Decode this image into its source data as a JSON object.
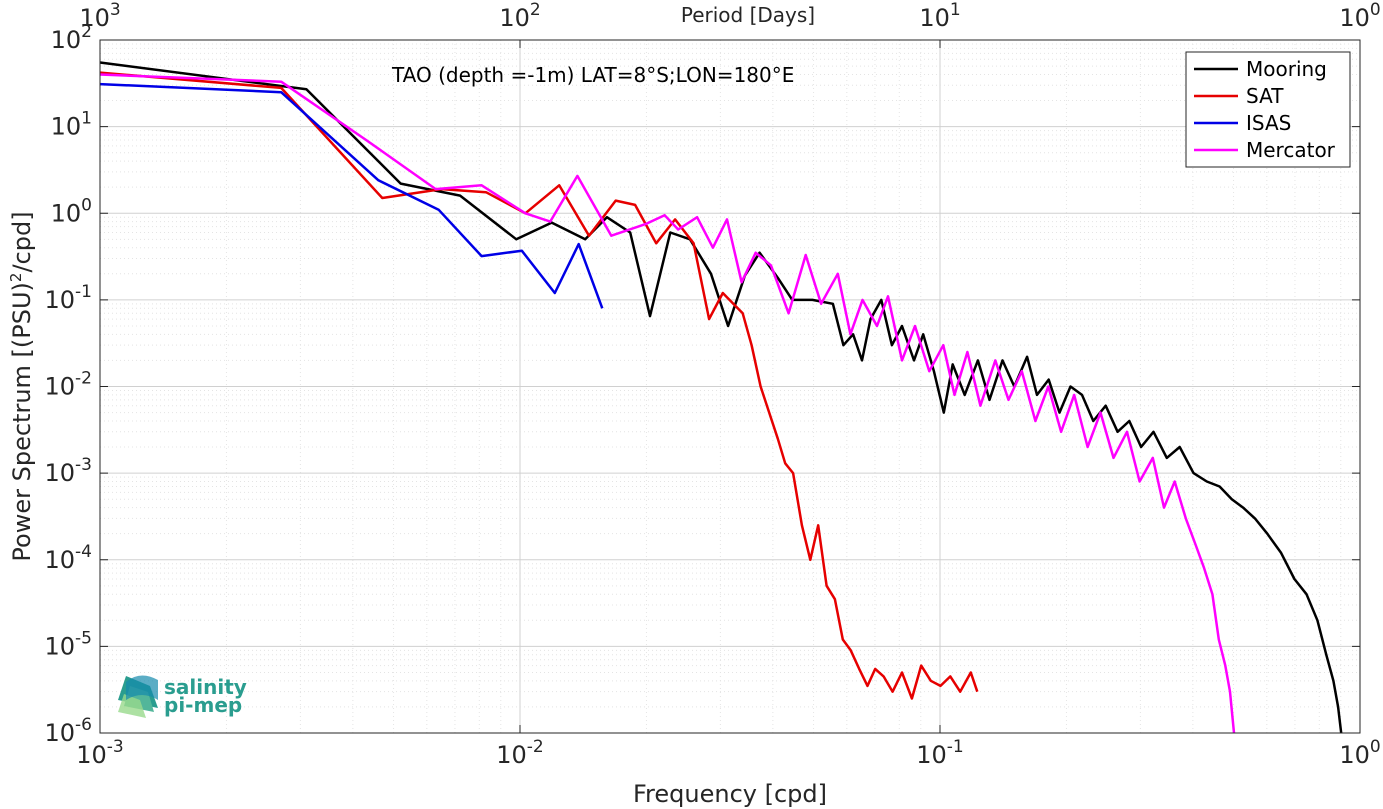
{
  "chart_data": {
    "type": "line",
    "title": "",
    "annotation": "TAO (depth =-1m) LAT=8°S;LON=180°E",
    "xlabel": "Frequency [cpd]",
    "ylabel": "Power Spectrum [(PSU)",
    "ylabel_sup": "2",
    "ylabel_tail": "/cpd]",
    "top_xlabel": "Period [Days]",
    "x_scale": "log",
    "y_scale": "log",
    "xlim": [
      0.001,
      1
    ],
    "ylim": [
      1e-06,
      100
    ],
    "x_ticks": [
      {
        "value": 0.001,
        "base": "10",
        "exp": "-3"
      },
      {
        "value": 0.01,
        "base": "10",
        "exp": "-2"
      },
      {
        "value": 0.1,
        "base": "10",
        "exp": "-1"
      },
      {
        "value": 1,
        "base": "10",
        "exp": "0"
      }
    ],
    "top_ticks": [
      {
        "freq": 0.001,
        "base": "10",
        "exp": "3"
      },
      {
        "freq": 0.01,
        "base": "10",
        "exp": "2"
      },
      {
        "freq": 0.1,
        "base": "10",
        "exp": "1"
      },
      {
        "freq": 1,
        "base": "10",
        "exp": "0"
      }
    ],
    "y_ticks": [
      {
        "value": 100,
        "base": "10",
        "exp": "2"
      },
      {
        "value": 10,
        "base": "10",
        "exp": "1"
      },
      {
        "value": 1,
        "base": "10",
        "exp": "0"
      },
      {
        "value": 0.1,
        "base": "10",
        "exp": "-1"
      },
      {
        "value": 0.01,
        "base": "10",
        "exp": "-2"
      },
      {
        "value": 0.001,
        "base": "10",
        "exp": "-3"
      },
      {
        "value": 0.0001,
        "base": "10",
        "exp": "-4"
      },
      {
        "value": 1e-05,
        "base": "10",
        "exp": "-5"
      },
      {
        "value": 1e-06,
        "base": "10",
        "exp": "-6"
      }
    ],
    "grid": true,
    "legend_position": "top-right",
    "series": [
      {
        "name": "Mooring",
        "color": "#000000",
        "points": [
          [
            0.001,
            55
          ],
          [
            0.0031,
            27
          ],
          [
            0.0052,
            2.2
          ],
          [
            0.0072,
            1.6
          ],
          [
            0.0098,
            0.5
          ],
          [
            0.0119,
            0.78
          ],
          [
            0.0143,
            0.5
          ],
          [
            0.0161,
            0.9
          ],
          [
            0.0183,
            0.6
          ],
          [
            0.0204,
            0.065
          ],
          [
            0.0228,
            0.6
          ],
          [
            0.0254,
            0.5
          ],
          [
            0.0285,
            0.2
          ],
          [
            0.0313,
            0.05
          ],
          [
            0.0343,
            0.19
          ],
          [
            0.0372,
            0.35
          ],
          [
            0.0411,
            0.18
          ],
          [
            0.0445,
            0.1
          ],
          [
            0.0497,
            0.1
          ],
          [
            0.0556,
            0.09
          ],
          [
            0.0589,
            0.03
          ],
          [
            0.0621,
            0.04
          ],
          [
            0.0652,
            0.02
          ],
          [
            0.0683,
            0.06
          ],
          [
            0.0725,
            0.1
          ],
          [
            0.0768,
            0.03
          ],
          [
            0.0812,
            0.05
          ],
          [
            0.0867,
            0.02
          ],
          [
            0.0912,
            0.04
          ],
          [
            0.0967,
            0.015
          ],
          [
            0.1021,
            0.005
          ],
          [
            0.1072,
            0.018
          ],
          [
            0.1145,
            0.008
          ],
          [
            0.1231,
            0.02
          ],
          [
            0.1312,
            0.007
          ],
          [
            0.1409,
            0.02
          ],
          [
            0.1503,
            0.01
          ],
          [
            0.1612,
            0.022
          ],
          [
            0.1702,
            0.008
          ],
          [
            0.1815,
            0.012
          ],
          [
            0.1925,
            0.005
          ],
          [
            0.2045,
            0.01
          ],
          [
            0.2178,
            0.008
          ],
          [
            0.2317,
            0.004
          ],
          [
            0.2481,
            0.006
          ],
          [
            0.2647,
            0.003
          ],
          [
            0.2823,
            0.004
          ],
          [
            0.3012,
            0.002
          ],
          [
            0.3224,
            0.003
          ],
          [
            0.3467,
            0.0015
          ],
          [
            0.3721,
            0.002
          ],
          [
            0.4015,
            0.001
          ],
          [
            0.4318,
            0.0008
          ],
          [
            0.4631,
            0.0007
          ],
          [
            0.4952,
            0.0005
          ],
          [
            0.5267,
            0.0004
          ],
          [
            0.5621,
            0.0003
          ],
          [
            0.6017,
            0.0002
          ],
          [
            0.6489,
            0.00012
          ],
          [
            0.6978,
            6e-05
          ],
          [
            0.7456,
            4e-05
          ],
          [
            0.7918,
            2e-05
          ],
          [
            0.8312,
            8e-06
          ],
          [
            0.8641,
            4e-06
          ],
          [
            0.8867,
            2e-06
          ],
          [
            0.9023,
            1e-06
          ]
        ]
      },
      {
        "name": "SAT",
        "color": "#e60000",
        "points": [
          [
            0.001,
            42
          ],
          [
            0.0027,
            28
          ],
          [
            0.0047,
            1.5
          ],
          [
            0.0065,
            1.9
          ],
          [
            0.0083,
            1.75
          ],
          [
            0.0103,
            1.0
          ],
          [
            0.0124,
            2.1
          ],
          [
            0.0146,
            0.55
          ],
          [
            0.0169,
            1.4
          ],
          [
            0.0188,
            1.25
          ],
          [
            0.0211,
            0.45
          ],
          [
            0.0234,
            0.85
          ],
          [
            0.0259,
            0.45
          ],
          [
            0.0282,
            0.06
          ],
          [
            0.0304,
            0.12
          ],
          [
            0.0322,
            0.09
          ],
          [
            0.0339,
            0.07
          ],
          [
            0.0356,
            0.03
          ],
          [
            0.0374,
            0.01
          ],
          [
            0.0392,
            0.005
          ],
          [
            0.0411,
            0.0025
          ],
          [
            0.0428,
            0.0013
          ],
          [
            0.0447,
            0.001
          ],
          [
            0.0469,
            0.00025
          ],
          [
            0.0491,
            0.0001
          ],
          [
            0.0513,
            0.00025
          ],
          [
            0.0537,
            5e-05
          ],
          [
            0.0562,
            3.5e-05
          ],
          [
            0.0587,
            1.2e-05
          ],
          [
            0.0613,
            9e-06
          ],
          [
            0.0642,
            5.5e-06
          ],
          [
            0.0672,
            3.5e-06
          ],
          [
            0.0701,
            5.5e-06
          ],
          [
            0.0734,
            4.5e-06
          ],
          [
            0.0771,
            3e-06
          ],
          [
            0.0812,
            5e-06
          ],
          [
            0.0857,
            2.5e-06
          ],
          [
            0.0902,
            6e-06
          ],
          [
            0.0951,
            4e-06
          ],
          [
            0.1003,
            3.5e-06
          ],
          [
            0.1058,
            4.5e-06
          ],
          [
            0.1117,
            3e-06
          ],
          [
            0.1184,
            5e-06
          ],
          [
            0.1227,
            3e-06
          ]
        ]
      },
      {
        "name": "ISAS",
        "color": "#0000e6",
        "points": [
          [
            0.001,
            31
          ],
          [
            0.0027,
            25
          ],
          [
            0.0046,
            2.4
          ],
          [
            0.0064,
            1.1
          ],
          [
            0.0081,
            0.32
          ],
          [
            0.0101,
            0.37
          ],
          [
            0.0121,
            0.12
          ],
          [
            0.0138,
            0.44
          ],
          [
            0.0157,
            0.08
          ]
        ]
      },
      {
        "name": "Mercator",
        "color": "#ff00ff",
        "points": [
          [
            0.001,
            40
          ],
          [
            0.0027,
            33
          ],
          [
            0.0043,
            7
          ],
          [
            0.0063,
            1.9
          ],
          [
            0.0081,
            2.1
          ],
          [
            0.0103,
            1.0
          ],
          [
            0.0118,
            0.8
          ],
          [
            0.0137,
            2.7
          ],
          [
            0.0165,
            0.55
          ],
          [
            0.0199,
            0.75
          ],
          [
            0.0221,
            0.95
          ],
          [
            0.0238,
            0.65
          ],
          [
            0.0264,
            0.9
          ],
          [
            0.0288,
            0.4
          ],
          [
            0.0311,
            0.85
          ],
          [
            0.0337,
            0.16
          ],
          [
            0.0364,
            0.35
          ],
          [
            0.0396,
            0.25
          ],
          [
            0.0436,
            0.07
          ],
          [
            0.0479,
            0.33
          ],
          [
            0.0521,
            0.09
          ],
          [
            0.0571,
            0.2
          ],
          [
            0.0612,
            0.04
          ],
          [
            0.0654,
            0.1
          ],
          [
            0.0708,
            0.05
          ],
          [
            0.0752,
            0.11
          ],
          [
            0.0812,
            0.02
          ],
          [
            0.0872,
            0.05
          ],
          [
            0.0943,
            0.015
          ],
          [
            0.1018,
            0.03
          ],
          [
            0.1083,
            0.008
          ],
          [
            0.1162,
            0.025
          ],
          [
            0.1248,
            0.006
          ],
          [
            0.1354,
            0.02
          ],
          [
            0.1456,
            0.007
          ],
          [
            0.1566,
            0.015
          ],
          [
            0.1687,
            0.004
          ],
          [
            0.1811,
            0.01
          ],
          [
            0.1942,
            0.003
          ],
          [
            0.2087,
            0.008
          ],
          [
            0.2246,
            0.002
          ],
          [
            0.2411,
            0.005
          ],
          [
            0.2589,
            0.0015
          ],
          [
            0.2787,
            0.003
          ],
          [
            0.2987,
            0.0008
          ],
          [
            0.3212,
            0.0015
          ],
          [
            0.3415,
            0.0004
          ],
          [
            0.3621,
            0.0008
          ],
          [
            0.3847,
            0.0003
          ],
          [
            0.4059,
            0.00015
          ],
          [
            0.4253,
            8e-05
          ],
          [
            0.4452,
            4e-05
          ],
          [
            0.4611,
            1.2e-05
          ],
          [
            0.4778,
            6e-06
          ],
          [
            0.4902,
            3e-06
          ],
          [
            0.5012,
            1e-06
          ]
        ]
      }
    ]
  },
  "logo": {
    "line1": "salinity",
    "line2": "pi-mep"
  }
}
